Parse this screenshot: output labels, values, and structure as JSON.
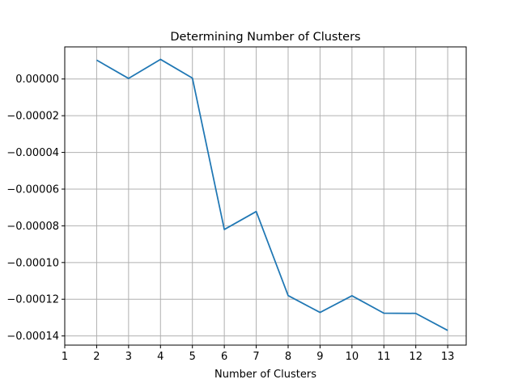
{
  "chart_data": {
    "type": "line",
    "title": "Determining Number of Clusters",
    "xlabel": "Number of Clusters",
    "ylabel": "",
    "x": [
      2,
      3,
      4,
      5,
      6,
      7,
      8,
      9,
      10,
      11,
      12,
      13
    ],
    "series": [
      {
        "values": [
          1.03e-05,
          3e-07,
          1.07e-05,
          5e-07,
          -8.2e-05,
          -7.22e-05,
          -0.000118,
          -0.0001272,
          -0.0001181,
          -0.0001276,
          -0.0001277,
          -0.000137
        ]
      }
    ],
    "xticks": [
      1,
      2,
      3,
      4,
      5,
      6,
      7,
      8,
      9,
      10,
      11,
      12,
      13
    ],
    "xtick_labels": [
      "1",
      "2",
      "3",
      "4",
      "5",
      "6",
      "7",
      "8",
      "9",
      "10",
      "11",
      "12",
      "13"
    ],
    "yticks": [
      0,
      -2e-05,
      -4e-05,
      -6e-05,
      -8e-05,
      -0.0001,
      -0.00012,
      -0.00014
    ],
    "ytick_labels": [
      "0.00000",
      "−0.00002",
      "−0.00004",
      "−0.00006",
      "−0.00008",
      "−0.00010",
      "−0.00012",
      "−0.00014"
    ],
    "xlim": [
      1,
      13.58
    ],
    "ylim": [
      -0.000145,
      1.75e-05
    ],
    "grid": true,
    "line_color": "#1f77b4",
    "grid_color": "#b0b0b0"
  }
}
